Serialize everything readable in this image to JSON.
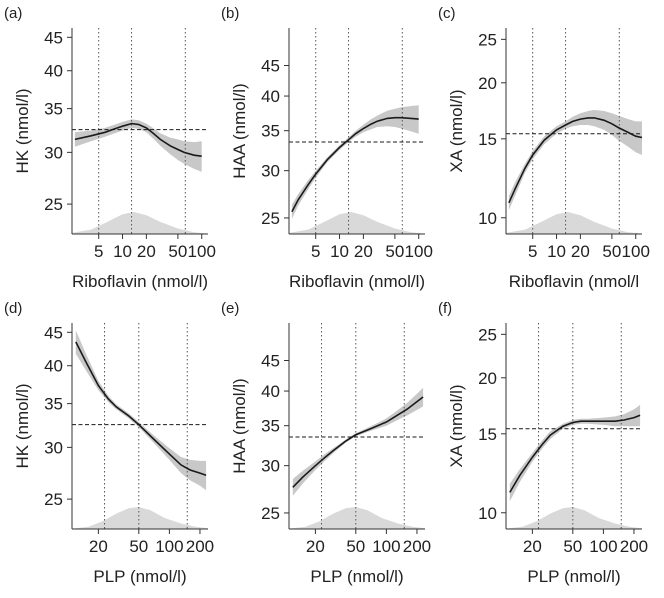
{
  "colors": {
    "curve": "#1a1a1a",
    "band": "#c8c8c8",
    "density": "#d9d9d9",
    "axis": "#333333",
    "guide": "#555555"
  },
  "chart_data": [
    {
      "panel": "(a)",
      "type": "line",
      "xscale": "log",
      "yscale": "log",
      "xlabel": "Riboflavin (nmol/l)",
      "ylabel": "HK (nmol/l)",
      "xlim": [
        2.3,
        120
      ],
      "ylim": [
        22.5,
        46.5
      ],
      "xticks": [
        5,
        10,
        20,
        50,
        100
      ],
      "xticklabels": [
        "5",
        "10",
        "20",
        "50",
        "100"
      ],
      "yticks": [
        25,
        30,
        35,
        40,
        45
      ],
      "yticklabels": [
        "25",
        "30",
        "35",
        "40",
        "45"
      ],
      "vlines": [
        5,
        13,
        62
      ],
      "hline": 32.5,
      "grid": false,
      "series": [
        {
          "x": [
            2.5,
            4,
            6,
            8,
            10,
            13,
            16,
            20,
            25,
            30,
            40,
            50,
            60,
            80,
            100
          ],
          "y": [
            31.4,
            31.8,
            32.2,
            32.6,
            32.9,
            33.2,
            33.1,
            32.7,
            32.0,
            31.4,
            30.7,
            30.3,
            30.0,
            29.7,
            29.6
          ],
          "lower": [
            30.6,
            31.2,
            31.7,
            32.1,
            32.4,
            32.7,
            32.6,
            32.2,
            31.4,
            30.7,
            29.8,
            29.2,
            28.8,
            28.3,
            28.0
          ],
          "upper": [
            32.2,
            32.4,
            32.7,
            33.1,
            33.4,
            33.7,
            33.6,
            33.2,
            32.6,
            32.1,
            31.6,
            31.4,
            31.2,
            31.1,
            31.2
          ]
        }
      ],
      "density": {
        "x": [
          2.3,
          4,
          6,
          10,
          14,
          20,
          30,
          50,
          80,
          120
        ],
        "y": [
          0.05,
          0.2,
          0.5,
          0.9,
          1.0,
          0.85,
          0.55,
          0.25,
          0.08,
          0.02
        ]
      }
    },
    {
      "panel": "(b)",
      "type": "line",
      "xscale": "log",
      "yscale": "log",
      "xlabel": "Riboflavin (nmol/l)",
      "ylabel": "HAA (nmol/l)",
      "xlim": [
        2.3,
        120
      ],
      "ylim": [
        23.5,
        52
      ],
      "xticks": [
        5,
        10,
        20,
        50,
        100
      ],
      "xticklabels": [
        "5",
        "10",
        "20",
        "50",
        "100"
      ],
      "yticks": [
        25,
        30,
        35,
        40,
        45
      ],
      "yticklabels": [
        "25",
        "30",
        "35",
        "40",
        "45"
      ],
      "vlines": [
        5,
        13,
        62
      ],
      "hline": 33.5,
      "grid": false,
      "series": [
        {
          "x": [
            2.5,
            3,
            4,
            5,
            7,
            10,
            13,
            16,
            20,
            25,
            30,
            40,
            50,
            60,
            80,
            100
          ],
          "y": [
            25.6,
            26.8,
            28.4,
            29.6,
            31.3,
            32.8,
            33.8,
            34.6,
            35.3,
            35.9,
            36.3,
            36.7,
            36.8,
            36.8,
            36.7,
            36.6
          ],
          "lower": [
            24.9,
            26.2,
            27.9,
            29.2,
            31.0,
            32.5,
            33.5,
            34.2,
            34.8,
            35.2,
            35.5,
            35.6,
            35.5,
            35.3,
            34.9,
            34.6
          ],
          "upper": [
            26.3,
            27.4,
            28.9,
            30.0,
            31.6,
            33.1,
            34.1,
            35.0,
            35.8,
            36.6,
            37.1,
            37.8,
            38.1,
            38.3,
            38.5,
            38.6
          ]
        }
      ],
      "density": {
        "x": [
          2.3,
          4,
          6,
          10,
          14,
          20,
          30,
          50,
          80,
          120
        ],
        "y": [
          0.05,
          0.2,
          0.5,
          0.9,
          1.0,
          0.85,
          0.55,
          0.25,
          0.08,
          0.02
        ]
      }
    },
    {
      "panel": "(c)",
      "type": "line",
      "xscale": "log",
      "yscale": "log",
      "xlabel": "Riboflavin (nmol/l",
      "ylabel": "XA (nmol/l)",
      "xlim": [
        2.3,
        120
      ],
      "ylim": [
        9.2,
        26.5
      ],
      "xticks": [
        5,
        10,
        20,
        50,
        100
      ],
      "xticklabels": [
        "5",
        "10",
        "20",
        "50",
        "100"
      ],
      "yticks": [
        10,
        15,
        20,
        25
      ],
      "yticklabels": [
        "10",
        "15",
        "20",
        "25"
      ],
      "vlines": [
        5,
        13,
        62
      ],
      "hline": 15.4,
      "grid": false,
      "series": [
        {
          "x": [
            2.5,
            3,
            4,
            5,
            7,
            10,
            13,
            16,
            20,
            25,
            30,
            40,
            50,
            60,
            80,
            100,
            120
          ],
          "y": [
            10.8,
            11.6,
            12.9,
            13.8,
            14.9,
            15.7,
            16.1,
            16.4,
            16.6,
            16.7,
            16.7,
            16.5,
            16.2,
            15.9,
            15.5,
            15.2,
            15.1
          ],
          "lower": [
            10.4,
            11.2,
            12.6,
            13.5,
            14.6,
            15.4,
            15.8,
            16.0,
            16.1,
            16.1,
            16.0,
            15.7,
            15.3,
            14.9,
            14.4,
            14.0,
            13.8
          ],
          "upper": [
            11.2,
            12.0,
            13.2,
            14.1,
            15.2,
            16.0,
            16.4,
            16.8,
            17.1,
            17.3,
            17.4,
            17.3,
            17.1,
            16.9,
            16.6,
            16.4,
            16.4
          ]
        }
      ],
      "density": {
        "x": [
          2.3,
          4,
          6,
          10,
          14,
          20,
          30,
          50,
          80,
          120
        ],
        "y": [
          0.05,
          0.2,
          0.5,
          0.9,
          1.0,
          0.85,
          0.55,
          0.25,
          0.08,
          0.02
        ]
      }
    },
    {
      "panel": "(d)",
      "type": "line",
      "xscale": "log",
      "yscale": "log",
      "xlabel": "PLP (nmol/l)",
      "ylabel": "HK (nmol/l)",
      "xlim": [
        11,
        240
      ],
      "ylim": [
        22.5,
        46.5
      ],
      "xticks": [
        20,
        50,
        100,
        200
      ],
      "xticklabels": [
        "20",
        "50",
        "100",
        "200"
      ],
      "yticks": [
        25,
        30,
        35,
        40,
        45
      ],
      "yticklabels": [
        "25",
        "30",
        "35",
        "40",
        "45"
      ],
      "vlines": [
        23,
        50,
        150
      ],
      "hline": 32.5,
      "grid": false,
      "series": [
        {
          "x": [
            12,
            15,
            20,
            25,
            30,
            40,
            50,
            70,
            100,
            130,
            160,
            200,
            230
          ],
          "y": [
            43.5,
            40.6,
            37.3,
            35.6,
            34.6,
            33.5,
            32.5,
            30.9,
            29.3,
            28.2,
            27.7,
            27.4,
            27.2
          ],
          "lower": [
            41.7,
            39.4,
            36.7,
            35.2,
            34.3,
            33.2,
            32.2,
            30.5,
            28.7,
            27.4,
            26.7,
            26.2,
            25.8
          ],
          "upper": [
            45.3,
            41.8,
            37.9,
            36.0,
            34.9,
            33.8,
            32.8,
            31.3,
            29.9,
            29.0,
            28.7,
            28.6,
            28.6
          ]
        }
      ],
      "density": {
        "x": [
          11,
          16,
          22,
          30,
          40,
          50,
          65,
          90,
          130,
          180,
          240
        ],
        "y": [
          0.02,
          0.1,
          0.35,
          0.7,
          0.95,
          1.0,
          0.85,
          0.5,
          0.25,
          0.1,
          0.03
        ]
      }
    },
    {
      "panel": "(e)",
      "type": "line",
      "xscale": "log",
      "yscale": "log",
      "xlabel": "PLP (nmol/l)",
      "ylabel": "HAA (nmol/l)",
      "xlim": [
        11,
        240
      ],
      "ylim": [
        23.5,
        52
      ],
      "xticks": [
        20,
        50,
        100,
        200
      ],
      "xticklabels": [
        "20",
        "50",
        "100",
        "200"
      ],
      "yticks": [
        25,
        30,
        35,
        40,
        45
      ],
      "yticklabels": [
        "25",
        "30",
        "35",
        "40",
        "45"
      ],
      "vlines": [
        23,
        50,
        150
      ],
      "hline": 33.5,
      "grid": false,
      "series": [
        {
          "x": [
            12,
            15,
            20,
            25,
            30,
            40,
            50,
            70,
            100,
            130,
            160,
            200,
            230
          ],
          "y": [
            27.6,
            28.7,
            30.0,
            31.0,
            31.8,
            33.0,
            33.8,
            34.6,
            35.5,
            36.5,
            37.3,
            38.4,
            39.1
          ],
          "lower": [
            26.7,
            28.0,
            29.5,
            30.6,
            31.5,
            32.8,
            33.6,
            34.3,
            35.0,
            35.8,
            36.4,
            37.2,
            37.7
          ],
          "upper": [
            28.5,
            29.4,
            30.5,
            31.4,
            32.1,
            33.2,
            34.0,
            34.9,
            36.0,
            37.2,
            38.2,
            39.6,
            40.5
          ]
        }
      ],
      "density": {
        "x": [
          11,
          16,
          22,
          30,
          40,
          50,
          65,
          90,
          130,
          180,
          240
        ],
        "y": [
          0.02,
          0.1,
          0.35,
          0.7,
          0.95,
          1.0,
          0.85,
          0.5,
          0.25,
          0.1,
          0.03
        ]
      }
    },
    {
      "panel": "(f)",
      "type": "line",
      "xscale": "log",
      "yscale": "log",
      "xlabel": "PLP (nmol/l)",
      "ylabel": "XA (nmol/l)",
      "xlim": [
        11,
        240
      ],
      "ylim": [
        9.2,
        26.5
      ],
      "xticks": [
        20,
        50,
        100,
        200
      ],
      "xticklabels": [
        "20",
        "50",
        "100",
        "200"
      ],
      "yticks": [
        10,
        15,
        20,
        25
      ],
      "yticklabels": [
        "10",
        "15",
        "20",
        "25"
      ],
      "vlines": [
        23,
        50,
        150
      ],
      "hline": 15.4,
      "grid": false,
      "series": [
        {
          "x": [
            12,
            15,
            20,
            25,
            30,
            40,
            50,
            60,
            70,
            100,
            130,
            160,
            200,
            230
          ],
          "y": [
            11.1,
            12.1,
            13.3,
            14.2,
            14.9,
            15.6,
            15.9,
            16.0,
            16.0,
            16.0,
            16.0,
            16.1,
            16.3,
            16.5
          ],
          "lower": [
            10.6,
            11.7,
            13.0,
            13.9,
            14.6,
            15.4,
            15.7,
            15.8,
            15.8,
            15.7,
            15.6,
            15.6,
            15.6,
            15.6
          ],
          "upper": [
            11.6,
            12.5,
            13.6,
            14.5,
            15.2,
            15.8,
            16.1,
            16.2,
            16.2,
            16.3,
            16.4,
            16.6,
            17.0,
            17.4
          ]
        }
      ],
      "density": {
        "x": [
          11,
          16,
          22,
          30,
          40,
          50,
          65,
          90,
          130,
          180,
          240
        ],
        "y": [
          0.02,
          0.1,
          0.35,
          0.7,
          0.95,
          1.0,
          0.85,
          0.5,
          0.25,
          0.1,
          0.03
        ]
      }
    }
  ]
}
